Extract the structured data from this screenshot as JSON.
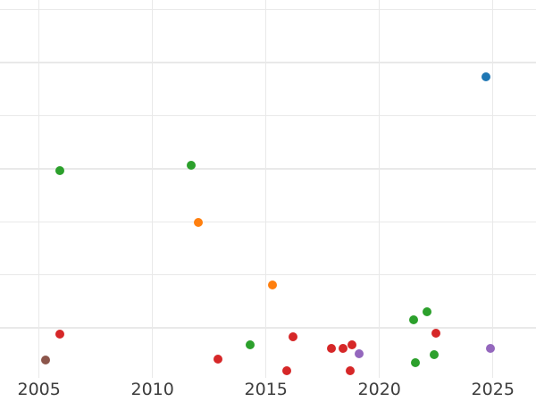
{
  "style": {
    "background": "#ffffff",
    "gridline_color": "#e9e9e9",
    "tick_label_color": "#3d3d3d"
  },
  "chart_data": {
    "type": "scatter",
    "title": "",
    "xlabel": "",
    "ylabel": "",
    "grid": true,
    "legend_position": "none",
    "y_axis_labels_visible": false,
    "marker_diameter_px": 10,
    "xlim": [
      2003.28,
      2026.9
    ],
    "ylim": [
      0.06,
      7.18
    ],
    "x_ticks": [
      2005,
      2010,
      2015,
      2020,
      2025
    ],
    "x_tick_labels": [
      "2005",
      "2010",
      "2015",
      "2020",
      "2025"
    ],
    "y_gridline_values": [
      1,
      2,
      3,
      4,
      5,
      6,
      7
    ],
    "series": [
      {
        "name": "series-blue",
        "color": "#1f77b4",
        "points": [
          {
            "x": 2024.7,
            "y": 5.74
          }
        ]
      },
      {
        "name": "series-orange",
        "color": "#ff7f0e",
        "points": [
          {
            "x": 2012.0,
            "y": 2.99
          },
          {
            "x": 2015.3,
            "y": 1.81
          }
        ]
      },
      {
        "name": "series-green",
        "color": "#2ca02c",
        "points": [
          {
            "x": 2005.9,
            "y": 3.96
          },
          {
            "x": 2011.7,
            "y": 4.06
          },
          {
            "x": 2014.3,
            "y": 0.69
          },
          {
            "x": 2021.5,
            "y": 1.16
          },
          {
            "x": 2021.6,
            "y": 0.35
          },
          {
            "x": 2022.1,
            "y": 1.3
          },
          {
            "x": 2022.4,
            "y": 0.49
          }
        ]
      },
      {
        "name": "series-red",
        "color": "#d62728",
        "points": [
          {
            "x": 2005.9,
            "y": 0.89
          },
          {
            "x": 2012.9,
            "y": 0.42
          },
          {
            "x": 2015.9,
            "y": 0.2
          },
          {
            "x": 2016.2,
            "y": 0.83
          },
          {
            "x": 2017.9,
            "y": 0.62
          },
          {
            "x": 2018.4,
            "y": 0.61
          },
          {
            "x": 2018.7,
            "y": 0.2
          },
          {
            "x": 2018.8,
            "y": 0.69
          },
          {
            "x": 2022.5,
            "y": 0.91
          }
        ]
      },
      {
        "name": "series-purple",
        "color": "#9467bd",
        "points": [
          {
            "x": 2019.1,
            "y": 0.52
          },
          {
            "x": 2024.9,
            "y": 0.61
          }
        ]
      },
      {
        "name": "series-brown",
        "color": "#8c564b",
        "points": [
          {
            "x": 2005.3,
            "y": 0.39
          }
        ]
      }
    ]
  }
}
